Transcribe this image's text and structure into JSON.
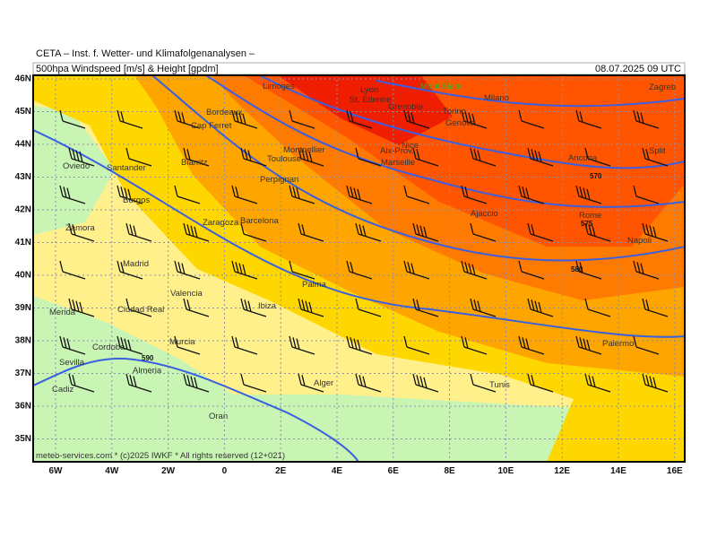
{
  "header": {
    "institute": "CETA – Inst. f. Wetter- und Klimafolgenanalysen –",
    "product": "500hpa Windspeed [m/s] & Height [gpdm]",
    "valid": "08.07.2025 09 UTC"
  },
  "lat_ticks": [
    {
      "value": 46,
      "label": "46N"
    },
    {
      "value": 45,
      "label": "45N"
    },
    {
      "value": 44,
      "label": "44N"
    },
    {
      "value": 43,
      "label": "43N"
    },
    {
      "value": 42,
      "label": "42N"
    },
    {
      "value": 41,
      "label": "41N"
    },
    {
      "value": 40,
      "label": "40N"
    },
    {
      "value": 39,
      "label": "39N"
    },
    {
      "value": 38,
      "label": "38N"
    },
    {
      "value": 37,
      "label": "37N"
    },
    {
      "value": 36,
      "label": "36N"
    },
    {
      "value": 35,
      "label": "35N"
    }
  ],
  "lon_ticks": [
    {
      "value": -6,
      "label": "6W"
    },
    {
      "value": -4,
      "label": "4W"
    },
    {
      "value": -2,
      "label": "2W"
    },
    0,
    {
      "value": 2,
      "label": "2E"
    },
    {
      "value": 4,
      "label": "4E"
    },
    {
      "value": 6,
      "label": "6E"
    },
    {
      "value": 8,
      "label": "8E"
    },
    {
      "value": 10,
      "label": "10E"
    },
    {
      "value": 12,
      "label": "12E"
    },
    {
      "value": 14,
      "label": "14E"
    },
    {
      "value": 16,
      "label": "16E"
    }
  ],
  "contour_labels": [
    570,
    575,
    580,
    590
  ],
  "cities": [
    "Limoges",
    "Lyon",
    "St. Etienne",
    "Grenoble",
    "Mont Blanc",
    "Milano",
    "Torino",
    "Genova",
    "Bordeaux",
    "Cap Ferret",
    "Montpellier",
    "Toulouse",
    "Nice",
    "Aix-Prov.",
    "Marseille",
    "Ancona",
    "Split",
    "Zagreb",
    "Oviedo",
    "Santander",
    "Biarritz",
    "Perpignan",
    "Burgos",
    "Ajaccio",
    "Rome",
    "Zaragoza",
    "Barcelona",
    "Zamora",
    "Napoli",
    "Madrid",
    "Palma",
    "Valencia",
    "Ibiza",
    "Merida",
    "Ciudad Real",
    "Palermo",
    "Cordoba",
    "Murcia",
    "Sevilla",
    "Almeria",
    "Alger",
    "Tunis",
    "Cadiz",
    "Oran"
  ],
  "footer": "meteo-services.com * (c)2025 IWKF * All rights reserved (12+021)"
}
